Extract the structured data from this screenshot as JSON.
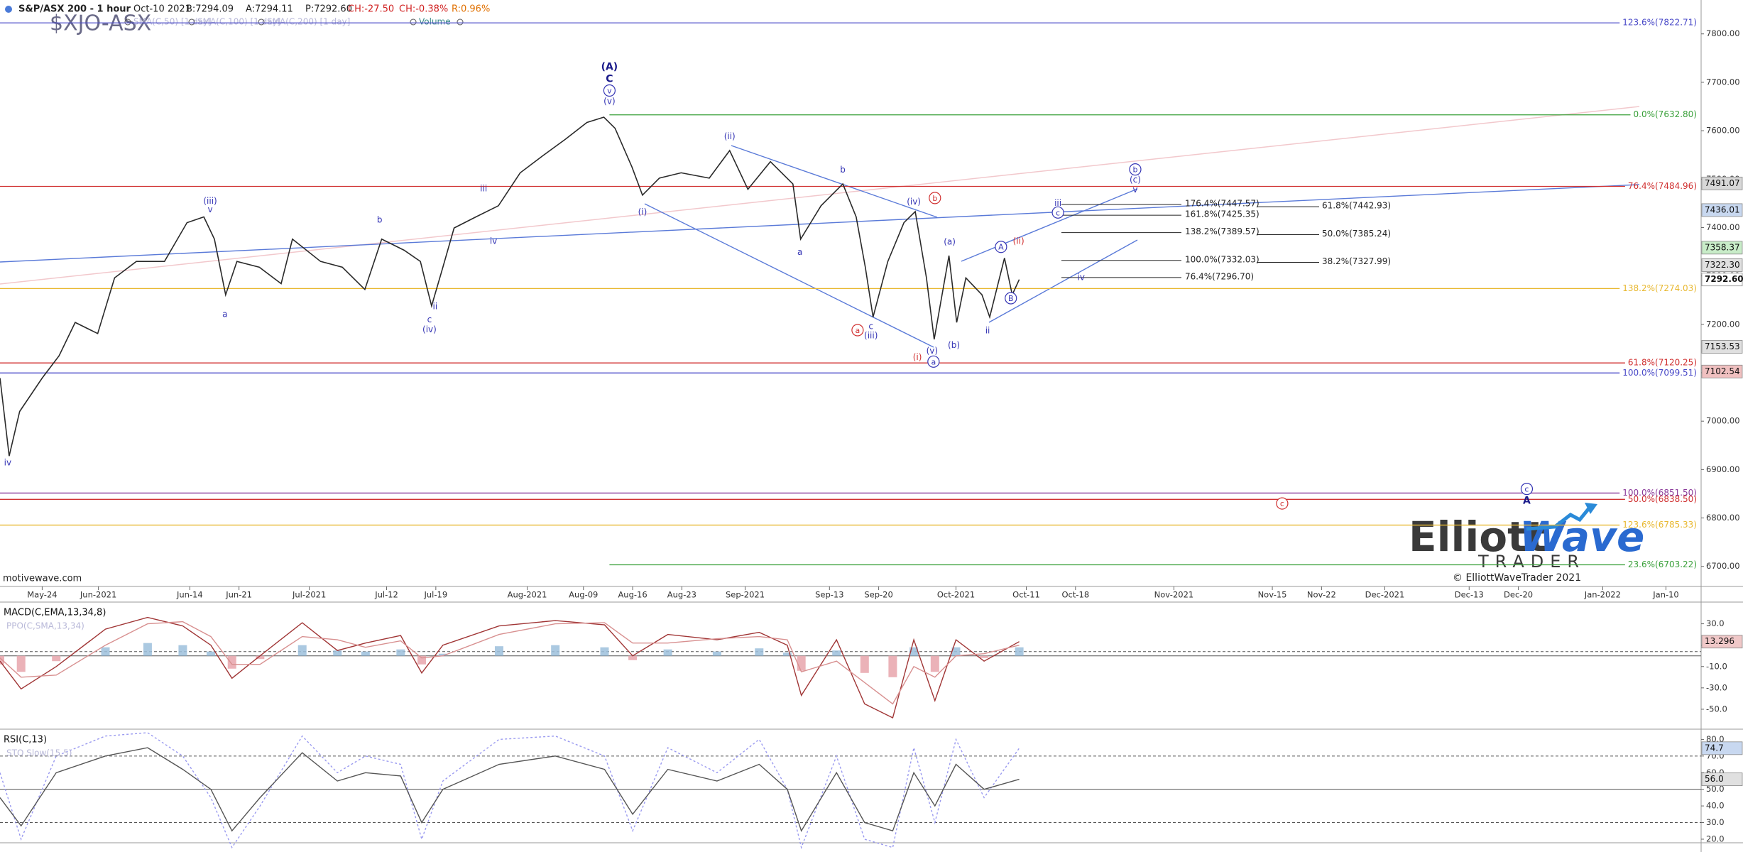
{
  "header": {
    "symbol_title": "S&P/ASX 200 - 1 hour",
    "date": "Oct-10 2021",
    "bid": "B:7294.09",
    "ask": "A:7294.11",
    "price": "P:7292.60",
    "change": "CH:-27.50",
    "change_pct": "CH:-0.38%",
    "range": "R:0.96%",
    "ticker": "$XJO-ASX",
    "indicators": [
      "SMA(C,50) [1 day]",
      "SMA(C,100) [1 day]",
      "SMA(C,200) [1 day]",
      "Volume"
    ]
  },
  "footer": {
    "source": "motivewave.com",
    "copyright": "© ElliottWaveTrader 2021",
    "logo_top": "Elliott",
    "logo_wave": "Wave",
    "logo_bottom": "TRADER"
  },
  "chart_data": [
    {
      "type": "line",
      "x": [
        1,
        2.3,
        3.8,
        7,
        9.4,
        11.7,
        14.9,
        17.3,
        20.4,
        24.4,
        27.6,
        30,
        31.5,
        33.1,
        34.7,
        37.9,
        41,
        42.6,
        46.6,
        49.7,
        52.9,
        55.3,
        58.5,
        60.8,
        62.4,
        64,
        65.6,
        68.7,
        71.9,
        75,
        78.2,
        81.4,
        84.5,
        86.9,
        88.5,
        90.9,
        92.4,
        94.8,
        97.9,
        101.9,
        104.8,
        107.4,
        110.6,
        113.8,
        114.9,
        117.8,
        120.9,
        122.8,
        124.1,
        125.2,
        127.3,
        129.6,
        131.2,
        132.8,
        133.9,
        136,
        137.1,
        138.4,
        140.7,
        141.8,
        143.9,
        145,
        146
      ],
      "values": [
        7089,
        6928,
        7020,
        7089,
        7135,
        7204,
        7181,
        7296,
        7330,
        7330,
        7410,
        7422,
        7376,
        7261,
        7330,
        7318,
        7284,
        7376,
        7330,
        7318,
        7272,
        7376,
        7353,
        7330,
        7238,
        7318,
        7399,
        7422,
        7445,
        7513,
        7548,
        7582,
        7617,
        7628,
        7605,
        7525,
        7467,
        7502,
        7513,
        7502,
        7559,
        7479,
        7536,
        7490,
        7376,
        7445,
        7490,
        7422,
        7318,
        7215,
        7330,
        7410,
        7433,
        7296,
        7169,
        7342,
        7204,
        7296,
        7261,
        7215,
        7337,
        7261,
        7292.6
      ],
      "color": "#2a2a2a",
      "xlim": [
        1,
        243
      ],
      "xticks": [
        {
          "value": 7,
          "label": "May-24"
        },
        {
          "value": 15,
          "label": "Jun-2021"
        },
        {
          "value": 28,
          "label": "Jun-14"
        },
        {
          "value": 35,
          "label": "Jun-21"
        },
        {
          "value": 45,
          "label": "Jul-2021"
        },
        {
          "value": 56,
          "label": "Jul-12"
        },
        {
          "value": 63,
          "label": "Jul-19"
        },
        {
          "value": 76,
          "label": "Aug-2021"
        },
        {
          "value": 84,
          "label": "Aug-09"
        },
        {
          "value": 91,
          "label": "Aug-16"
        },
        {
          "value": 98,
          "label": "Aug-23"
        },
        {
          "value": 107,
          "label": "Sep-2021"
        },
        {
          "value": 119,
          "label": "Sep-13"
        },
        {
          "value": 126,
          "label": "Sep-20"
        },
        {
          "value": 137,
          "label": "Oct-2021"
        },
        {
          "value": 147,
          "label": "Oct-11"
        },
        {
          "value": 154,
          "label": "Oct-18"
        },
        {
          "value": 168,
          "label": "Nov-2021"
        },
        {
          "value": 182,
          "label": "Nov-15"
        },
        {
          "value": 189,
          "label": "Nov-22"
        },
        {
          "value": 198,
          "label": "Dec-2021"
        },
        {
          "value": 210,
          "label": "Dec-13"
        },
        {
          "value": 217,
          "label": "Dec-20"
        },
        {
          "value": 229,
          "label": "Jan-2022"
        },
        {
          "value": 238,
          "label": "Jan-10"
        }
      ],
      "ylim": [
        6660,
        7870
      ],
      "yticks": [
        {
          "value": 7800,
          "label": "7800.00"
        },
        {
          "value": 7700,
          "label": "7700.00"
        },
        {
          "value": 7600,
          "label": "7600.00"
        },
        {
          "value": 7500,
          "label": "7500.00"
        },
        {
          "value": 7400,
          "label": "7400.00"
        },
        {
          "value": 7300,
          "label": "7300.00"
        },
        {
          "value": 7200,
          "label": "7200.00"
        },
        {
          "value": 7100,
          "label": "7100.00"
        },
        {
          "value": 7000,
          "label": "7000.00"
        },
        {
          "value": 6900,
          "label": "6900.00"
        },
        {
          "value": 6800,
          "label": "6800.00"
        },
        {
          "value": 6700,
          "label": "6700.00"
        }
      ],
      "fib_levels": [
        {
          "label": "123.6%(7822.71)",
          "value": 7822.71,
          "color": "#4a4ac8"
        },
        {
          "label": "0.0%(7632.80)",
          "value": 7632.8,
          "color": "#3aa03a",
          "from": 87.7
        },
        {
          "label": "76.4%(7484.96)",
          "value": 7484.96,
          "color": "#d03030"
        },
        {
          "label": "138.2%(7274.03)",
          "value": 7274.03,
          "color": "#e8b830"
        },
        {
          "label": "61.8%(7120.25)",
          "value": 7120.25,
          "color": "#d03030"
        },
        {
          "label": "100.0%(7099.51)",
          "value": 7099.51,
          "color": "#4a4ac8"
        },
        {
          "label": "100.0%(6851.50)",
          "value": 6851.5,
          "color": "#8a3a9a"
        },
        {
          "label": "50.0%(6838.50)",
          "value": 6838.5,
          "color": "#d03030"
        },
        {
          "label": "123.6%(6785.33)",
          "value": 6785.33,
          "color": "#e8b830"
        },
        {
          "label": "23.6%(6703.22)",
          "value": 6703.22,
          "color": "#3aa03a",
          "from": 87.7
        }
      ],
      "fib_projections": [
        {
          "label": "176.4%(7447.57)",
          "value": 7447.57
        },
        {
          "label": "161.8%(7425.35)",
          "value": 7425.35
        },
        {
          "label": "138.2%(7389.57)",
          "value": 7389.57
        },
        {
          "label": "100.0%(7332.03)",
          "value": 7332.03
        },
        {
          "label": "76.4%(7296.70)",
          "value": 7296.7
        }
      ],
      "fib_retracements": [
        {
          "label": "61.8%(7442.93)",
          "value": 7442.93
        },
        {
          "label": "50.0%(7385.24)",
          "value": 7385.24
        },
        {
          "label": "38.2%(7327.99)",
          "value": 7327.99
        }
      ],
      "price_labels": [
        {
          "value": 7491.07,
          "label": "7491.07",
          "color": "#d8d8d8"
        },
        {
          "value": 7436.01,
          "label": "7436.01",
          "color": "#c8d8f0"
        },
        {
          "value": 7358.37,
          "label": "7358.37",
          "color": "#c8ecc8"
        },
        {
          "value": 7322.3,
          "label": "7322.30",
          "color": "#e0e0e0"
        },
        {
          "value": 7292.6,
          "label": "7292.60",
          "color": "#ffffff"
        },
        {
          "value": 7153.53,
          "label": "7153.53",
          "color": "#e0e0e0"
        },
        {
          "value": 7102.54,
          "label": "7102.54",
          "color": "#f0c0c0"
        }
      ],
      "annotations": [
        {
          "text": "iv",
          "x": 2.1,
          "y": 6915,
          "color": "#3535b5"
        },
        {
          "text": "(iii)",
          "x": 30.9,
          "y": 7456,
          "color": "#3535b5"
        },
        {
          "text": "v",
          "x": 30.9,
          "y": 7438,
          "color": "#3535b5"
        },
        {
          "text": "a",
          "x": 33,
          "y": 7222,
          "color": "#3535b5"
        },
        {
          "text": "b",
          "x": 55,
          "y": 7417,
          "color": "#3535b5"
        },
        {
          "text": "ii",
          "x": 62.9,
          "y": 7238,
          "color": "#3535b5"
        },
        {
          "text": "c",
          "x": 62.1,
          "y": 7211,
          "color": "#3535b5"
        },
        {
          "text": "(iv)",
          "x": 62.1,
          "y": 7190,
          "color": "#3535b5"
        },
        {
          "text": "iii",
          "x": 69.8,
          "y": 7481,
          "color": "#3535b5"
        },
        {
          "text": "iv",
          "x": 71.2,
          "y": 7373,
          "color": "#3535b5"
        },
        {
          "text": "(A)",
          "x": 87.7,
          "y": 7733,
          "color": "#1a1a8a",
          "bold": true
        },
        {
          "text": "C",
          "x": 87.7,
          "y": 7708,
          "color": "#1a1a8a",
          "bold": true
        },
        {
          "text": "v",
          "x": 87.7,
          "y": 7683,
          "color": "#3535b5",
          "circled": true
        },
        {
          "text": "(v)",
          "x": 87.7,
          "y": 7662,
          "color": "#3535b5"
        },
        {
          "text": "(i)",
          "x": 92.4,
          "y": 7433,
          "color": "#3535b5"
        },
        {
          "text": "(ii)",
          "x": 104.8,
          "y": 7589,
          "color": "#3535b5"
        },
        {
          "text": "a",
          "x": 114.8,
          "y": 7350,
          "color": "#3535b5"
        },
        {
          "text": "b",
          "x": 120.9,
          "y": 7520,
          "color": "#3535b5"
        },
        {
          "text": "a",
          "x": 123,
          "y": 7188,
          "color": "#d03030",
          "circled": true
        },
        {
          "text": "c",
          "x": 124.9,
          "y": 7197,
          "color": "#3535b5"
        },
        {
          "text": "(iii)",
          "x": 124.9,
          "y": 7178,
          "color": "#3535b5"
        },
        {
          "text": "(iv)",
          "x": 131,
          "y": 7454,
          "color": "#3535b5"
        },
        {
          "text": "(i)",
          "x": 131.5,
          "y": 7133,
          "color": "#d03030"
        },
        {
          "text": "(v)",
          "x": 133.6,
          "y": 7146,
          "color": "#3535b5"
        },
        {
          "text": "a",
          "x": 133.8,
          "y": 7123,
          "color": "#3535b5",
          "circled": true
        },
        {
          "text": "b",
          "x": 134,
          "y": 7461,
          "color": "#d03030",
          "circled": true
        },
        {
          "text": "(a)",
          "x": 136.1,
          "y": 7371,
          "color": "#3535b5"
        },
        {
          "text": "(b)",
          "x": 136.7,
          "y": 7158,
          "color": "#3535b5"
        },
        {
          "text": "ii",
          "x": 141.5,
          "y": 7188,
          "color": "#3535b5"
        },
        {
          "text": "A",
          "x": 143.4,
          "y": 7360,
          "color": "#3535b5",
          "circled": true
        },
        {
          "text": "B",
          "x": 144.8,
          "y": 7254,
          "color": "#3535b5",
          "circled": true
        },
        {
          "text": "(ii)",
          "x": 145.9,
          "y": 7373,
          "color": "#d03030"
        },
        {
          "text": "iii",
          "x": 151.5,
          "y": 7451,
          "color": "#3535b5"
        },
        {
          "text": "c",
          "x": 151.5,
          "y": 7431,
          "color": "#3535b5",
          "circled": true
        },
        {
          "text": "iv",
          "x": 154.8,
          "y": 7298,
          "color": "#3535b5"
        },
        {
          "text": "b",
          "x": 162.5,
          "y": 7520,
          "color": "#3535b5",
          "circled": true
        },
        {
          "text": "(c)",
          "x": 162.5,
          "y": 7500,
          "color": "#3535b5"
        },
        {
          "text": "v",
          "x": 162.5,
          "y": 7479,
          "color": "#3535b5"
        },
        {
          "text": "c",
          "x": 183.4,
          "y": 6830,
          "color": "#d03030",
          "circled": true
        },
        {
          "text": "c",
          "x": 218.2,
          "y": 6860,
          "color": "#3535b5",
          "circled": true
        },
        {
          "text": "A",
          "x": 218.2,
          "y": 6837,
          "color": "#1a1a8a",
          "bold": true
        }
      ]
    },
    {
      "type": "line",
      "title": "MACD(C,EMA,13,34,8)",
      "x": [
        1,
        4,
        9,
        16,
        22,
        27,
        31,
        34,
        38,
        44,
        49,
        53,
        58,
        61,
        64,
        72,
        80,
        87,
        91,
        96,
        103,
        109,
        113,
        115,
        120,
        124,
        128,
        131,
        134,
        137,
        141,
        146
      ],
      "xlim": [
        1,
        243
      ],
      "series": [
        {
          "name": "PPO(C,SMA,13,34)",
          "type": "bar",
          "color": "#9cc0dc",
          "negative_color": "#e8a4ac",
          "values": [
            -8,
            -15,
            -5,
            8,
            12,
            10,
            4,
            -12,
            -3,
            10,
            5,
            4,
            6,
            -8,
            2,
            9,
            10,
            8,
            -4,
            6,
            4,
            7,
            3,
            -14,
            5,
            -16,
            -20,
            8,
            -15,
            8,
            -2,
            8
          ]
        },
        {
          "color": "#a03535",
          "values": [
            -5,
            -31,
            -10,
            25,
            36,
            28,
            10,
            -21,
            0,
            31,
            5,
            12,
            19,
            -16,
            10,
            28,
            33,
            29,
            0,
            20,
            15,
            22,
            10,
            -37,
            15,
            -45,
            -58,
            15,
            -42,
            15,
            -5,
            13.3
          ]
        },
        {
          "color": "#d89090",
          "values": [
            -2,
            -20,
            -18,
            10,
            30,
            32,
            18,
            -8,
            -8,
            18,
            15,
            8,
            14,
            -2,
            0,
            20,
            30,
            31,
            12,
            12,
            16,
            18,
            15,
            -15,
            -5,
            -25,
            -45,
            -10,
            -20,
            0,
            2,
            10
          ]
        }
      ],
      "ylim": [
        -68,
        49
      ],
      "yticks": [
        {
          "value": 30,
          "label": "30.0"
        },
        {
          "value": 10,
          "label": "10.0"
        },
        {
          "value": -10,
          "label": "-10.0"
        },
        {
          "value": -30,
          "label": "-30.0"
        },
        {
          "value": -50,
          "label": "-50.0"
        }
      ],
      "guides": [
        4,
        0
      ],
      "price_labels": [
        {
          "value": 13.296,
          "color": "#f0c8c8"
        }
      ]
    },
    {
      "type": "line",
      "title": "RSI(C,13)",
      "x": [
        1,
        4,
        9,
        16,
        22,
        27,
        31,
        34,
        38,
        44,
        49,
        53,
        58,
        61,
        64,
        72,
        80,
        87,
        91,
        96,
        103,
        109,
        113,
        115,
        120,
        124,
        128,
        131,
        134,
        137,
        141,
        146
      ],
      "xlim": [
        1,
        243
      ],
      "series": [
        {
          "name": "STO Slow(15,5)",
          "color": "#9a9af0",
          "dash": true,
          "values": [
            60,
            20,
            70,
            82,
            84,
            70,
            45,
            15,
            40,
            82,
            60,
            70,
            65,
            20,
            55,
            80,
            82,
            70,
            25,
            75,
            60,
            80,
            50,
            15,
            70,
            20,
            15,
            75,
            30,
            80,
            45,
            74.7
          ]
        },
        {
          "color": "#555555",
          "values": [
            45,
            28,
            60,
            70,
            75,
            62,
            50,
            25,
            45,
            72,
            55,
            60,
            58,
            30,
            50,
            65,
            70,
            62,
            35,
            62,
            55,
            65,
            50,
            25,
            60,
            30,
            25,
            60,
            40,
            65,
            50,
            56
          ]
        }
      ],
      "ylim": [
        18.7,
        85.3
      ],
      "yticks": [
        {
          "value": 80,
          "label": "80.0"
        },
        {
          "value": 70,
          "label": "70.0"
        },
        {
          "value": 60,
          "label": "60.0"
        },
        {
          "value": 50,
          "label": "50.0"
        },
        {
          "value": 40,
          "label": "40.0"
        },
        {
          "value": 30,
          "label": "30.0"
        },
        {
          "value": 20,
          "label": "20.0"
        }
      ],
      "guides": [
        70,
        50,
        30
      ],
      "price_labels": [
        {
          "value": 74.7,
          "color": "#c8d8f0"
        },
        {
          "value": 56,
          "label": "56.0",
          "color": "#e0e0e0"
        }
      ]
    }
  ]
}
